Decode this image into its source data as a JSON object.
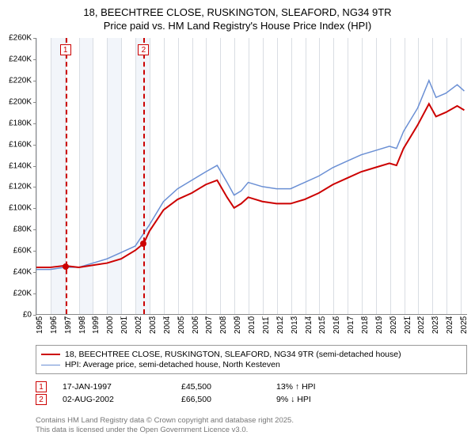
{
  "title": {
    "line1": "18, BEECHTREE CLOSE, RUSKINGTON, SLEAFORD, NG34 9TR",
    "line2": "Price paid vs. HM Land Registry's House Price Index (HPI)"
  },
  "chart": {
    "type": "line",
    "background_color": "#ffffff",
    "alt_band_color": "#f2f5fa",
    "grid_color": "#d9dde3",
    "axis_color": "#888888",
    "xlim": [
      1995,
      2025.5
    ],
    "ylim": [
      0,
      260000
    ],
    "ytick_step": 20000,
    "y_tick_labels": [
      "£0",
      "£20K",
      "£40K",
      "£60K",
      "£80K",
      "£100K",
      "£120K",
      "£140K",
      "£160K",
      "£180K",
      "£200K",
      "£220K",
      "£240K",
      "£260K"
    ],
    "x_ticks": [
      1995,
      1996,
      1997,
      1998,
      1999,
      2000,
      2001,
      2002,
      2003,
      2004,
      2005,
      2006,
      2007,
      2008,
      2009,
      2010,
      2011,
      2012,
      2013,
      2014,
      2015,
      2016,
      2017,
      2018,
      2019,
      2020,
      2021,
      2022,
      2023,
      2024,
      2025
    ],
    "alt_bands": [
      [
        1996,
        1997
      ],
      [
        1998,
        1999
      ],
      [
        2000,
        2001
      ],
      [
        2002,
        2003
      ]
    ],
    "series": [
      {
        "name": "property",
        "label": "18, BEECHTREE CLOSE, RUSKINGTON, SLEAFORD, NG34 9TR (semi-detached house)",
        "color": "#cc0000",
        "width": 2,
        "points": [
          [
            1995,
            44000
          ],
          [
            1996,
            44000
          ],
          [
            1997,
            45500
          ],
          [
            1998,
            44000
          ],
          [
            1999,
            46000
          ],
          [
            2000,
            48000
          ],
          [
            2001,
            52000
          ],
          [
            2002,
            60000
          ],
          [
            2002.6,
            66500
          ],
          [
            2003,
            78000
          ],
          [
            2004,
            98000
          ],
          [
            2005,
            108000
          ],
          [
            2006,
            114000
          ],
          [
            2007,
            122000
          ],
          [
            2007.8,
            126000
          ],
          [
            2008.5,
            110000
          ],
          [
            2009,
            100000
          ],
          [
            2009.5,
            104000
          ],
          [
            2010,
            110000
          ],
          [
            2011,
            106000
          ],
          [
            2012,
            104000
          ],
          [
            2013,
            104000
          ],
          [
            2014,
            108000
          ],
          [
            2015,
            114000
          ],
          [
            2016,
            122000
          ],
          [
            2017,
            128000
          ],
          [
            2018,
            134000
          ],
          [
            2019,
            138000
          ],
          [
            2020,
            142000
          ],
          [
            2020.5,
            140000
          ],
          [
            2021,
            156000
          ],
          [
            2022,
            178000
          ],
          [
            2022.8,
            198000
          ],
          [
            2023.3,
            186000
          ],
          [
            2024,
            190000
          ],
          [
            2024.8,
            196000
          ],
          [
            2025.3,
            192000
          ]
        ]
      },
      {
        "name": "hpi",
        "label": "HPI: Average price, semi-detached house, North Kesteven",
        "color": "#6a8fd4",
        "width": 1.5,
        "points": [
          [
            1995,
            42000
          ],
          [
            1996,
            42000
          ],
          [
            1997,
            44000
          ],
          [
            1998,
            44000
          ],
          [
            1999,
            48000
          ],
          [
            2000,
            52000
          ],
          [
            2001,
            58000
          ],
          [
            2002,
            64000
          ],
          [
            2003,
            84000
          ],
          [
            2004,
            106000
          ],
          [
            2005,
            118000
          ],
          [
            2006,
            126000
          ],
          [
            2007,
            134000
          ],
          [
            2007.8,
            140000
          ],
          [
            2008.5,
            124000
          ],
          [
            2009,
            112000
          ],
          [
            2009.5,
            116000
          ],
          [
            2010,
            124000
          ],
          [
            2011,
            120000
          ],
          [
            2012,
            118000
          ],
          [
            2013,
            118000
          ],
          [
            2014,
            124000
          ],
          [
            2015,
            130000
          ],
          [
            2016,
            138000
          ],
          [
            2017,
            144000
          ],
          [
            2018,
            150000
          ],
          [
            2019,
            154000
          ],
          [
            2020,
            158000
          ],
          [
            2020.5,
            156000
          ],
          [
            2021,
            172000
          ],
          [
            2022,
            194000
          ],
          [
            2022.8,
            220000
          ],
          [
            2023.3,
            204000
          ],
          [
            2024,
            208000
          ],
          [
            2024.8,
            216000
          ],
          [
            2025.3,
            210000
          ]
        ]
      }
    ],
    "markers": [
      {
        "index": "1",
        "x": 1997.05,
        "price_y": 45500,
        "line_color": "#cc0000",
        "box_top": 8
      },
      {
        "index": "2",
        "x": 2002.58,
        "price_y": 66500,
        "line_color": "#cc0000",
        "box_top": 8
      }
    ]
  },
  "legend": {
    "rows": [
      {
        "color": "#cc0000",
        "width": 2,
        "label_path": "chart.series.0.label"
      },
      {
        "color": "#6a8fd4",
        "width": 1.5,
        "label_path": "chart.series.1.label"
      }
    ]
  },
  "transactions": [
    {
      "index": "1",
      "date": "17-JAN-1997",
      "price": "£45,500",
      "pct": "13% ↑ HPI"
    },
    {
      "index": "2",
      "date": "02-AUG-2002",
      "price": "£66,500",
      "pct": "9% ↓ HPI"
    }
  ],
  "footer": {
    "line1": "Contains HM Land Registry data © Crown copyright and database right 2025.",
    "line2": "This data is licensed under the Open Government Licence v3.0."
  }
}
